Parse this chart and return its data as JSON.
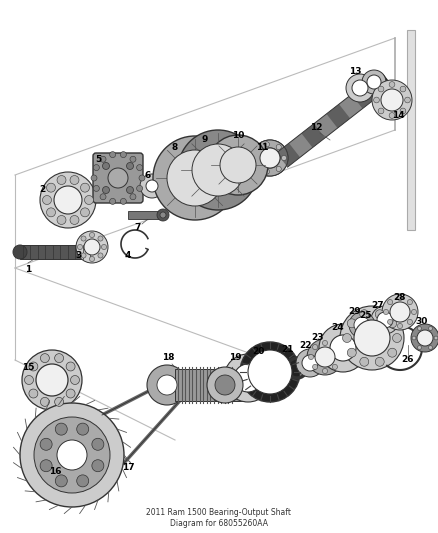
{
  "title": "2011 Ram 1500 Bearing-Output Shaft Diagram for 68055260AA",
  "background_color": "#ffffff",
  "fig_width": 4.38,
  "fig_height": 5.33,
  "dpi": 100,
  "line_color": "#333333",
  "label_color": "#000000",
  "label_fontsize": 6.5
}
